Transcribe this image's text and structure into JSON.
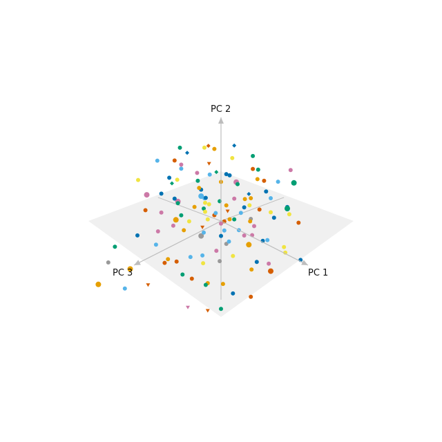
{
  "chart_data": {
    "type": "scatter",
    "projection": "3d",
    "axes": [
      {
        "id": "x",
        "label": "PC 1"
      },
      {
        "id": "y",
        "label": "PC 2"
      },
      {
        "id": "z",
        "label": "PC 3"
      }
    ],
    "grid": false,
    "legend": "none",
    "colors": {
      "plane": "#f0f0f0",
      "axis": "#bdbdbd",
      "palette": [
        "#0072b2",
        "#56b4e9",
        "#009e73",
        "#e69f00",
        "#f0e442",
        "#d55e00",
        "#cc79a7",
        "#999999"
      ]
    },
    "points": [
      {
        "x": 0.08,
        "y": 0.03,
        "z": -0.05,
        "c": 3,
        "m": "circle",
        "s": 3
      },
      {
        "x": -0.2,
        "y": 0.27,
        "z": 0.1,
        "c": 1,
        "m": "circle",
        "s": 4
      },
      {
        "x": 0.3,
        "y": 0.38,
        "z": -0.12,
        "c": 0,
        "m": "diamond",
        "s": 3
      },
      {
        "x": 0.25,
        "y": 0.55,
        "z": 0.02,
        "c": 6,
        "m": "circle",
        "s": 4
      },
      {
        "x": -0.35,
        "y": 0.2,
        "z": 0.3,
        "c": 2,
        "m": "circle",
        "s": 3
      },
      {
        "x": 0.45,
        "y": 0.15,
        "z": -0.3,
        "c": 4,
        "m": "circle",
        "s": 3
      },
      {
        "x": -0.1,
        "y": -0.05,
        "z": 0.18,
        "c": 5,
        "m": "triangle",
        "s": 3
      },
      {
        "x": 0.52,
        "y": -0.1,
        "z": 0.1,
        "c": 3,
        "m": "circle",
        "s": 4
      },
      {
        "x": -0.45,
        "y": 0.08,
        "z": -0.2,
        "c": 1,
        "m": "circle",
        "s": 3
      },
      {
        "x": 0.12,
        "y": 0.42,
        "z": 0.35,
        "c": 0,
        "m": "circle",
        "s": 3
      },
      {
        "x": -0.02,
        "y": 0.6,
        "z": 0.05,
        "c": 2,
        "m": "diamond",
        "s": 3
      },
      {
        "x": 0.38,
        "y": -0.25,
        "z": 0.4,
        "c": 7,
        "m": "circle",
        "s": 3
      },
      {
        "x": -0.6,
        "y": -0.2,
        "z": 0.35,
        "c": 6,
        "m": "circle",
        "s": 3
      },
      {
        "x": 0.7,
        "y": 0.22,
        "z": -0.1,
        "c": 0,
        "m": "circle",
        "s": 3
      },
      {
        "x": -0.25,
        "y": -0.4,
        "z": 0.6,
        "c": 5,
        "m": "circle",
        "s": 3
      },
      {
        "x": 0.15,
        "y": -0.35,
        "z": -0.55,
        "c": 1,
        "m": "circle",
        "s": 3
      },
      {
        "x": -0.7,
        "y": 0.45,
        "z": 0.55,
        "c": 4,
        "m": "circle",
        "s": 3
      },
      {
        "x": 0.55,
        "y": 0.7,
        "z": 0.3,
        "c": 2,
        "m": "circle",
        "s": 3
      },
      {
        "x": -0.15,
        "y": 0.25,
        "z": -0.7,
        "c": 3,
        "m": "circle",
        "s": 3
      },
      {
        "x": 0.05,
        "y": -0.15,
        "z": 0.05,
        "c": 0,
        "m": "circle",
        "s": 3
      },
      {
        "x": 0.2,
        "y": 0.1,
        "z": 0.15,
        "c": 5,
        "m": "circle",
        "s": 3
      },
      {
        "x": -0.05,
        "y": 0.18,
        "z": -0.25,
        "c": 6,
        "m": "circle",
        "s": 3
      },
      {
        "x": 0.3,
        "y": 0.05,
        "z": 0.25,
        "c": 1,
        "m": "circle",
        "s": 3
      },
      {
        "x": -0.3,
        "y": -0.1,
        "z": -0.1,
        "c": 4,
        "m": "circle",
        "s": 3
      },
      {
        "x": 0.4,
        "y": 0.3,
        "z": 0.05,
        "c": 0,
        "m": "circle",
        "s": 3
      },
      {
        "x": -0.08,
        "y": 0.45,
        "z": 0.25,
        "c": 3,
        "m": "circle",
        "s": 3
      },
      {
        "x": 0.1,
        "y": -0.05,
        "z": -0.35,
        "c": 7,
        "m": "circle",
        "s": 3
      },
      {
        "x": 0.6,
        "y": 0.08,
        "z": 0.25,
        "c": 6,
        "m": "circle",
        "s": 3
      },
      {
        "x": -0.4,
        "y": 0.35,
        "z": -0.05,
        "c": 2,
        "m": "circle",
        "s": 3
      },
      {
        "x": 0.22,
        "y": -0.2,
        "z": 0.5,
        "c": 1,
        "m": "circle",
        "s": 3
      },
      {
        "x": 0.35,
        "y": 0.5,
        "z": -0.3,
        "c": 5,
        "m": "circle",
        "s": 3
      },
      {
        "x": -0.55,
        "y": 0.15,
        "z": 0.15,
        "c": 0,
        "m": "circle",
        "s": 3
      },
      {
        "x": 0.75,
        "y": -0.15,
        "z": -0.2,
        "c": 4,
        "m": "circle",
        "s": 3
      },
      {
        "x": 0.05,
        "y": 0.32,
        "z": 0.45,
        "c": 3,
        "m": "circle",
        "s": 3
      },
      {
        "x": -0.18,
        "y": -0.3,
        "z": -0.45,
        "c": 1,
        "m": "circle",
        "s": 3
      },
      {
        "x": 0.48,
        "y": -0.05,
        "z": 0.55,
        "c": 6,
        "m": "circle",
        "s": 3
      },
      {
        "x": -0.65,
        "y": 0.55,
        "z": 0.05,
        "c": 5,
        "m": "circle",
        "s": 3
      },
      {
        "x": 0.18,
        "y": 0.65,
        "z": 0.1,
        "c": 0,
        "m": "circle",
        "s": 3
      },
      {
        "x": -0.28,
        "y": 0.05,
        "z": 0.4,
        "c": 3,
        "m": "circle",
        "s": 4
      },
      {
        "x": 0.65,
        "y": 0.35,
        "z": 0.45,
        "c": 2,
        "m": "circle",
        "s": 3
      },
      {
        "x": -0.12,
        "y": -0.5,
        "z": 0.15,
        "c": 4,
        "m": "circle",
        "s": 3
      },
      {
        "x": 0.25,
        "y": 0.2,
        "z": -0.5,
        "c": 1,
        "m": "circle",
        "s": 3
      },
      {
        "x": 0.8,
        "y": -0.35,
        "z": 0.05,
        "c": 5,
        "m": "circle",
        "s": 4
      },
      {
        "x": -0.8,
        "y": -0.05,
        "z": -0.15,
        "c": 6,
        "m": "circle",
        "s": 4
      },
      {
        "x": 0.0,
        "y": 0.85,
        "z": -0.2,
        "c": 0,
        "m": "diamond",
        "s": 3
      },
      {
        "x": -0.32,
        "y": 0.62,
        "z": 0.28,
        "c": 1,
        "m": "circle",
        "s": 3
      },
      {
        "x": 0.42,
        "y": -0.45,
        "z": 0.65,
        "c": 2,
        "m": "circle",
        "s": 3
      },
      {
        "x": -0.05,
        "y": -0.25,
        "z": 0.75,
        "c": 3,
        "m": "circle",
        "s": 3
      },
      {
        "x": 0.58,
        "y": 0.12,
        "z": -0.45,
        "c": 4,
        "m": "circle",
        "s": 3
      },
      {
        "x": 0.1,
        "y": 0.15,
        "z": 0.0,
        "c": 5,
        "m": "triangle",
        "s": 3
      },
      {
        "x": -0.22,
        "y": 0.38,
        "z": -0.35,
        "c": 0,
        "m": "circle",
        "s": 3
      },
      {
        "x": 0.32,
        "y": -0.12,
        "z": -0.15,
        "c": 6,
        "m": "circle",
        "s": 3
      },
      {
        "x": -0.48,
        "y": -0.28,
        "z": 0.5,
        "c": 1,
        "m": "circle",
        "s": 3
      },
      {
        "x": 0.7,
        "y": 0.55,
        "z": -0.4,
        "c": 2,
        "m": "circle",
        "s": 4
      },
      {
        "x": 0.15,
        "y": -0.6,
        "z": 0.35,
        "c": 3,
        "m": "circle",
        "s": 3
      },
      {
        "x": -0.38,
        "y": 0.48,
        "z": -0.55,
        "c": 4,
        "m": "circle",
        "s": 3
      },
      {
        "x": 0.5,
        "y": 0.4,
        "z": 0.6,
        "c": 5,
        "m": "circle",
        "s": 3
      },
      {
        "x": -0.1,
        "y": 0.1,
        "z": 0.62,
        "c": 6,
        "m": "circle",
        "s": 3
      },
      {
        "x": 0.88,
        "y": 0.1,
        "z": 0.25,
        "c": 0,
        "m": "circle",
        "s": 3
      },
      {
        "x": -0.6,
        "y": -0.45,
        "z": -0.3,
        "c": 7,
        "m": "circle",
        "s": 4
      },
      {
        "x": 0.28,
        "y": 0.78,
        "z": 0.45,
        "c": 1,
        "m": "circle",
        "s": 3
      },
      {
        "x": -0.15,
        "y": 0.05,
        "z": -0.6,
        "c": 3,
        "m": "circle",
        "s": 3
      },
      {
        "x": 0.62,
        "y": -0.3,
        "z": -0.35,
        "c": 4,
        "m": "circle",
        "s": 3
      },
      {
        "x": -0.42,
        "y": 0.22,
        "z": 0.72,
        "c": 5,
        "m": "circle",
        "s": 3
      },
      {
        "x": 0.08,
        "y": 0.5,
        "z": -0.48,
        "c": 2,
        "m": "circle",
        "s": 3
      },
      {
        "x": 0.95,
        "y": 0.42,
        "z": -0.05,
        "c": 2,
        "m": "circle",
        "s": 4
      },
      {
        "x": -0.92,
        "y": 0.1,
        "z": 0.2,
        "c": 6,
        "m": "circle",
        "s": 4
      },
      {
        "x": 0.38,
        "y": -0.7,
        "z": 0.2,
        "c": 0,
        "m": "circle",
        "s": 3
      },
      {
        "x": -0.25,
        "y": 0.75,
        "z": -0.15,
        "c": 3,
        "m": "circle",
        "s": 3
      },
      {
        "x": 0.18,
        "y": -0.18,
        "z": 0.85,
        "c": 5,
        "m": "circle",
        "s": 3
      },
      {
        "x": -0.72,
        "y": -0.6,
        "z": 0.65,
        "c": 3,
        "m": "circle",
        "s": 4
      },
      {
        "x": 0.52,
        "y": 0.25,
        "z": 0.78,
        "c": 1,
        "m": "circle",
        "s": 3
      },
      {
        "x": -0.35,
        "y": -0.15,
        "z": -0.78,
        "c": 4,
        "m": "circle",
        "s": 3
      },
      {
        "x": 0.78,
        "y": 0.62,
        "z": 0.1,
        "c": 0,
        "m": "circle",
        "s": 3
      },
      {
        "x": -0.02,
        "y": 0.28,
        "z": 0.22,
        "c": 4,
        "m": "circle",
        "s": 3
      },
      {
        "x": 0.12,
        "y": 0.08,
        "z": -0.18,
        "c": 1,
        "m": "circle",
        "s": 3
      },
      {
        "x": -0.18,
        "y": 0.12,
        "z": 0.08,
        "c": 2,
        "m": "circle",
        "s": 3
      },
      {
        "x": 0.26,
        "y": 0.32,
        "z": 0.18,
        "c": 3,
        "m": "circle",
        "s": 3
      },
      {
        "x": -0.08,
        "y": -0.08,
        "z": -0.08,
        "c": 6,
        "m": "circle",
        "s": 3
      },
      {
        "x": 0.36,
        "y": 0.18,
        "z": -0.22,
        "c": 5,
        "m": "circle",
        "s": 3
      },
      {
        "x": -0.28,
        "y": 0.3,
        "z": 0.02,
        "c": 0,
        "m": "circle",
        "s": 3
      },
      {
        "x": 0.06,
        "y": 0.22,
        "z": 0.3,
        "c": 4,
        "m": "circle",
        "s": 3
      },
      {
        "x": 0.44,
        "y": -0.02,
        "z": 0.32,
        "c": 1,
        "m": "circle",
        "s": 3
      },
      {
        "x": -0.12,
        "y": 0.4,
        "z": -0.12,
        "c": 3,
        "m": "circle",
        "s": 3
      },
      {
        "x": 0.22,
        "y": -0.08,
        "z": -0.28,
        "c": 6,
        "m": "circle",
        "s": 3
      },
      {
        "x": -0.38,
        "y": 0.02,
        "z": 0.22,
        "c": 2,
        "m": "circle",
        "s": 3
      },
      {
        "x": 0.16,
        "y": 0.58,
        "z": -0.32,
        "c": 5,
        "m": "circle",
        "s": 3
      },
      {
        "x": -0.5,
        "y": 0.3,
        "z": 0.4,
        "c": 0,
        "m": "circle",
        "s": 3
      },
      {
        "x": 0.56,
        "y": 0.2,
        "z": 0.12,
        "c": 3,
        "m": "circle",
        "s": 3
      },
      {
        "x": -0.04,
        "y": -0.32,
        "z": 0.42,
        "c": 1,
        "m": "circle",
        "s": 3
      },
      {
        "x": 0.34,
        "y": 0.46,
        "z": 0.52,
        "c": 4,
        "m": "circle",
        "s": 3
      },
      {
        "x": -0.26,
        "y": 0.52,
        "z": 0.48,
        "c": 2,
        "m": "diamond",
        "s": 3
      },
      {
        "x": 0.46,
        "y": -0.38,
        "z": -0.08,
        "c": 0,
        "m": "circle",
        "s": 3
      },
      {
        "x": -0.58,
        "y": 0.4,
        "z": -0.4,
        "c": 5,
        "m": "triangle",
        "s": 3
      },
      {
        "x": 0.02,
        "y": 0.7,
        "z": 0.38,
        "c": 6,
        "m": "circle",
        "s": 3
      },
      {
        "x": 0.66,
        "y": -0.08,
        "z": 0.48,
        "c": 4,
        "m": "circle",
        "s": 3
      },
      {
        "x": -0.46,
        "y": -0.22,
        "z": 0.1,
        "c": 3,
        "m": "circle",
        "s": 3
      },
      {
        "x": 0.24,
        "y": 0.36,
        "z": -0.62,
        "c": 1,
        "m": "circle",
        "s": 3
      },
      {
        "x": -0.2,
        "y": -0.42,
        "z": -0.28,
        "c": 7,
        "m": "circle",
        "s": 3
      },
      {
        "x": 0.72,
        "y": 0.3,
        "z": -0.28,
        "c": 0,
        "m": "circle",
        "s": 3
      },
      {
        "x": -0.32,
        "y": 0.18,
        "z": 0.58,
        "c": 6,
        "m": "circle",
        "s": 3
      },
      {
        "x": 0.14,
        "y": -0.48,
        "z": 0.58,
        "c": 5,
        "m": "circle",
        "s": 3
      },
      {
        "x": -0.66,
        "y": 0.62,
        "z": 0.3,
        "c": 1,
        "m": "circle",
        "s": 3
      },
      {
        "x": 0.84,
        "y": -0.22,
        "z": 0.38,
        "c": 3,
        "m": "circle",
        "s": 3
      },
      {
        "x": -0.1,
        "y": 0.9,
        "z": 0.15,
        "c": 4,
        "m": "circle",
        "s": 3
      },
      {
        "x": 0.4,
        "y": 0.88,
        "z": -0.08,
        "c": 2,
        "m": "circle",
        "s": 3
      },
      {
        "x": -0.84,
        "y": -0.3,
        "z": 0.42,
        "c": 0,
        "m": "circle",
        "s": 3
      },
      {
        "x": 0.3,
        "y": -0.55,
        "z": -0.42,
        "c": 6,
        "m": "circle",
        "s": 3
      },
      {
        "x": -0.44,
        "y": 0.7,
        "z": -0.25,
        "c": 5,
        "m": "diamond",
        "s": 3
      },
      {
        "x": 0.6,
        "y": 0.48,
        "z": 0.68,
        "c": 1,
        "m": "circle",
        "s": 3
      },
      {
        "x": -0.06,
        "y": 0.12,
        "z": -0.42,
        "c": 3,
        "m": "circle",
        "s": 3
      },
      {
        "x": 0.2,
        "y": 0.26,
        "z": 0.68,
        "c": 4,
        "m": "circle",
        "s": 3
      },
      {
        "x": -0.54,
        "y": -0.08,
        "z": -0.52,
        "c": 2,
        "m": "circle",
        "s": 3
      },
      {
        "x": 0.92,
        "y": 0.18,
        "z": -0.25,
        "c": 5,
        "m": "circle",
        "s": 3
      },
      {
        "x": -0.16,
        "y": 0.66,
        "z": 0.62,
        "c": 0,
        "m": "circle",
        "s": 3
      },
      {
        "x": 0.08,
        "y": -0.72,
        "z": 0.05,
        "c": 3,
        "m": "circle",
        "s": 3
      },
      {
        "x": 0.5,
        "y": 0.6,
        "z": -0.55,
        "c": 6,
        "m": "circle",
        "s": 3
      },
      {
        "x": -0.76,
        "y": 0.24,
        "z": -0.1,
        "c": 4,
        "m": "circle",
        "s": 3
      },
      {
        "x": 0.32,
        "y": -0.28,
        "z": 0.9,
        "c": 2,
        "m": "circle",
        "s": 3
      },
      {
        "x": -0.3,
        "y": -0.62,
        "z": 0.8,
        "c": 5,
        "m": "triangle",
        "s": 3
      },
      {
        "x": 0.04,
        "y": 1.0,
        "z": 0.55,
        "c": 0,
        "m": "diamond",
        "s": 3
      },
      {
        "x": -0.2,
        "y": 0.95,
        "z": 0.42,
        "c": 2,
        "m": "circle",
        "s": 3
      },
      {
        "x": 0.1,
        "y": 0.92,
        "z": 0.7,
        "c": 6,
        "m": "circle",
        "s": 3
      },
      {
        "x": -0.9,
        "y": -0.75,
        "z": 0.95,
        "c": 3,
        "m": "circle",
        "s": 4
      },
      {
        "x": 0.7,
        "y": -0.6,
        "z": 0.9,
        "c": 5,
        "m": "triangle",
        "s": 3
      },
      {
        "x": -0.7,
        "y": -0.8,
        "z": 0.75,
        "c": 1,
        "m": "circle",
        "s": 3
      },
      {
        "x": 1.0,
        "y": -0.45,
        "z": 0.55,
        "c": 5,
        "m": "circle",
        "s": 3
      },
      {
        "x": 0.85,
        "y": -0.55,
        "z": 0.85,
        "c": 2,
        "m": "circle",
        "s": 3
      },
      {
        "x": -0.95,
        "y": -0.4,
        "z": 0.65,
        "c": 2,
        "m": "circle",
        "s": 3
      },
      {
        "x": 0.45,
        "y": -0.62,
        "z": 0.95,
        "c": 6,
        "m": "triangle",
        "s": 3
      },
      {
        "x": -0.85,
        "y": -0.5,
        "z": 0.85,
        "c": 7,
        "m": "circle",
        "s": 3
      },
      {
        "x": 0.55,
        "y": -0.5,
        "z": -0.65,
        "c": 0,
        "m": "circle",
        "s": 3
      }
    ]
  }
}
